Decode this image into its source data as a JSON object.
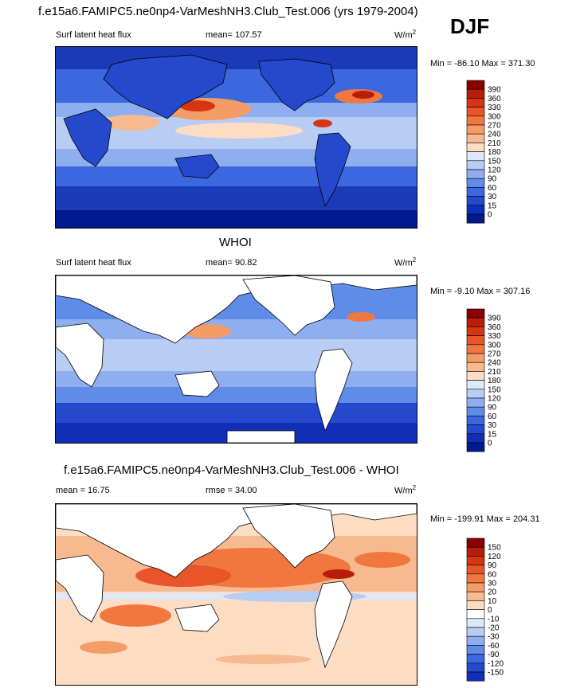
{
  "main_title": "f.e15a6.FAMIPC5.ne0np4-VarMeshNH3.Club_Test.006 (yrs 1979-2004)",
  "season": "DJF",
  "panels": [
    {
      "header_title": "",
      "left_label": "Surf latent heat flux",
      "stat_label": "mean=  107.57",
      "units_base": "W/m",
      "units_exp": "2",
      "minmax": "Min = -86.10 Max = 371.30",
      "colorbar_labels": [
        "390",
        "360",
        "330",
        "300",
        "270",
        "240",
        "210",
        "180",
        "150",
        "120",
        "90",
        "60",
        "30",
        "15",
        "0"
      ],
      "colorbar_colors": [
        "#8b0000",
        "#b81d0a",
        "#d63511",
        "#e8552a",
        "#f0783f",
        "#f59b66",
        "#f7b98f",
        "#fcddc4",
        "#dfe8f8",
        "#b8cdf4",
        "#8eaef0",
        "#5f8ce8",
        "#3b68de",
        "#2449cc",
        "#0f2fb8",
        "#001a8f"
      ]
    },
    {
      "header_title": "WHOI",
      "left_label": "Surf latent heat flux",
      "stat_label": "mean=  90.82",
      "units_base": "W/m",
      "units_exp": "2",
      "minmax": "Min =  -9.10 Max = 307.16",
      "colorbar_labels": [
        "390",
        "360",
        "330",
        "300",
        "270",
        "240",
        "210",
        "180",
        "150",
        "120",
        "90",
        "60",
        "30",
        "15",
        "0"
      ],
      "colorbar_colors": [
        "#8b0000",
        "#b81d0a",
        "#d63511",
        "#e8552a",
        "#f0783f",
        "#f59b66",
        "#f7b98f",
        "#fcddc4",
        "#dfe8f8",
        "#b8cdf4",
        "#8eaef0",
        "#5f8ce8",
        "#3b68de",
        "#2449cc",
        "#0f2fb8",
        "#001a8f"
      ]
    },
    {
      "header_title": "f.e15a6.FAMIPC5.ne0np4-VarMeshNH3.Club_Test.006 - WHOI",
      "left_label": "mean =  16.75",
      "stat_label": "rmse =  34.00",
      "units_base": "W/m",
      "units_exp": "2",
      "minmax": "Min = -199.91 Max = 204.31",
      "colorbar_labels": [
        "150",
        "120",
        "90",
        "60",
        "30",
        "20",
        "10",
        "0",
        "-10",
        "-20",
        "-30",
        "-60",
        "-90",
        "-120",
        "-150"
      ],
      "colorbar_colors": [
        "#8b0000",
        "#b81d0a",
        "#d63511",
        "#e8552a",
        "#f0783f",
        "#f59b66",
        "#f7b98f",
        "#fcddc4",
        "#ffffff",
        "#dfe8f8",
        "#b8cdf4",
        "#8eaef0",
        "#5f8ce8",
        "#3b68de",
        "#2449cc",
        "#0f2fb8"
      ]
    }
  ]
}
